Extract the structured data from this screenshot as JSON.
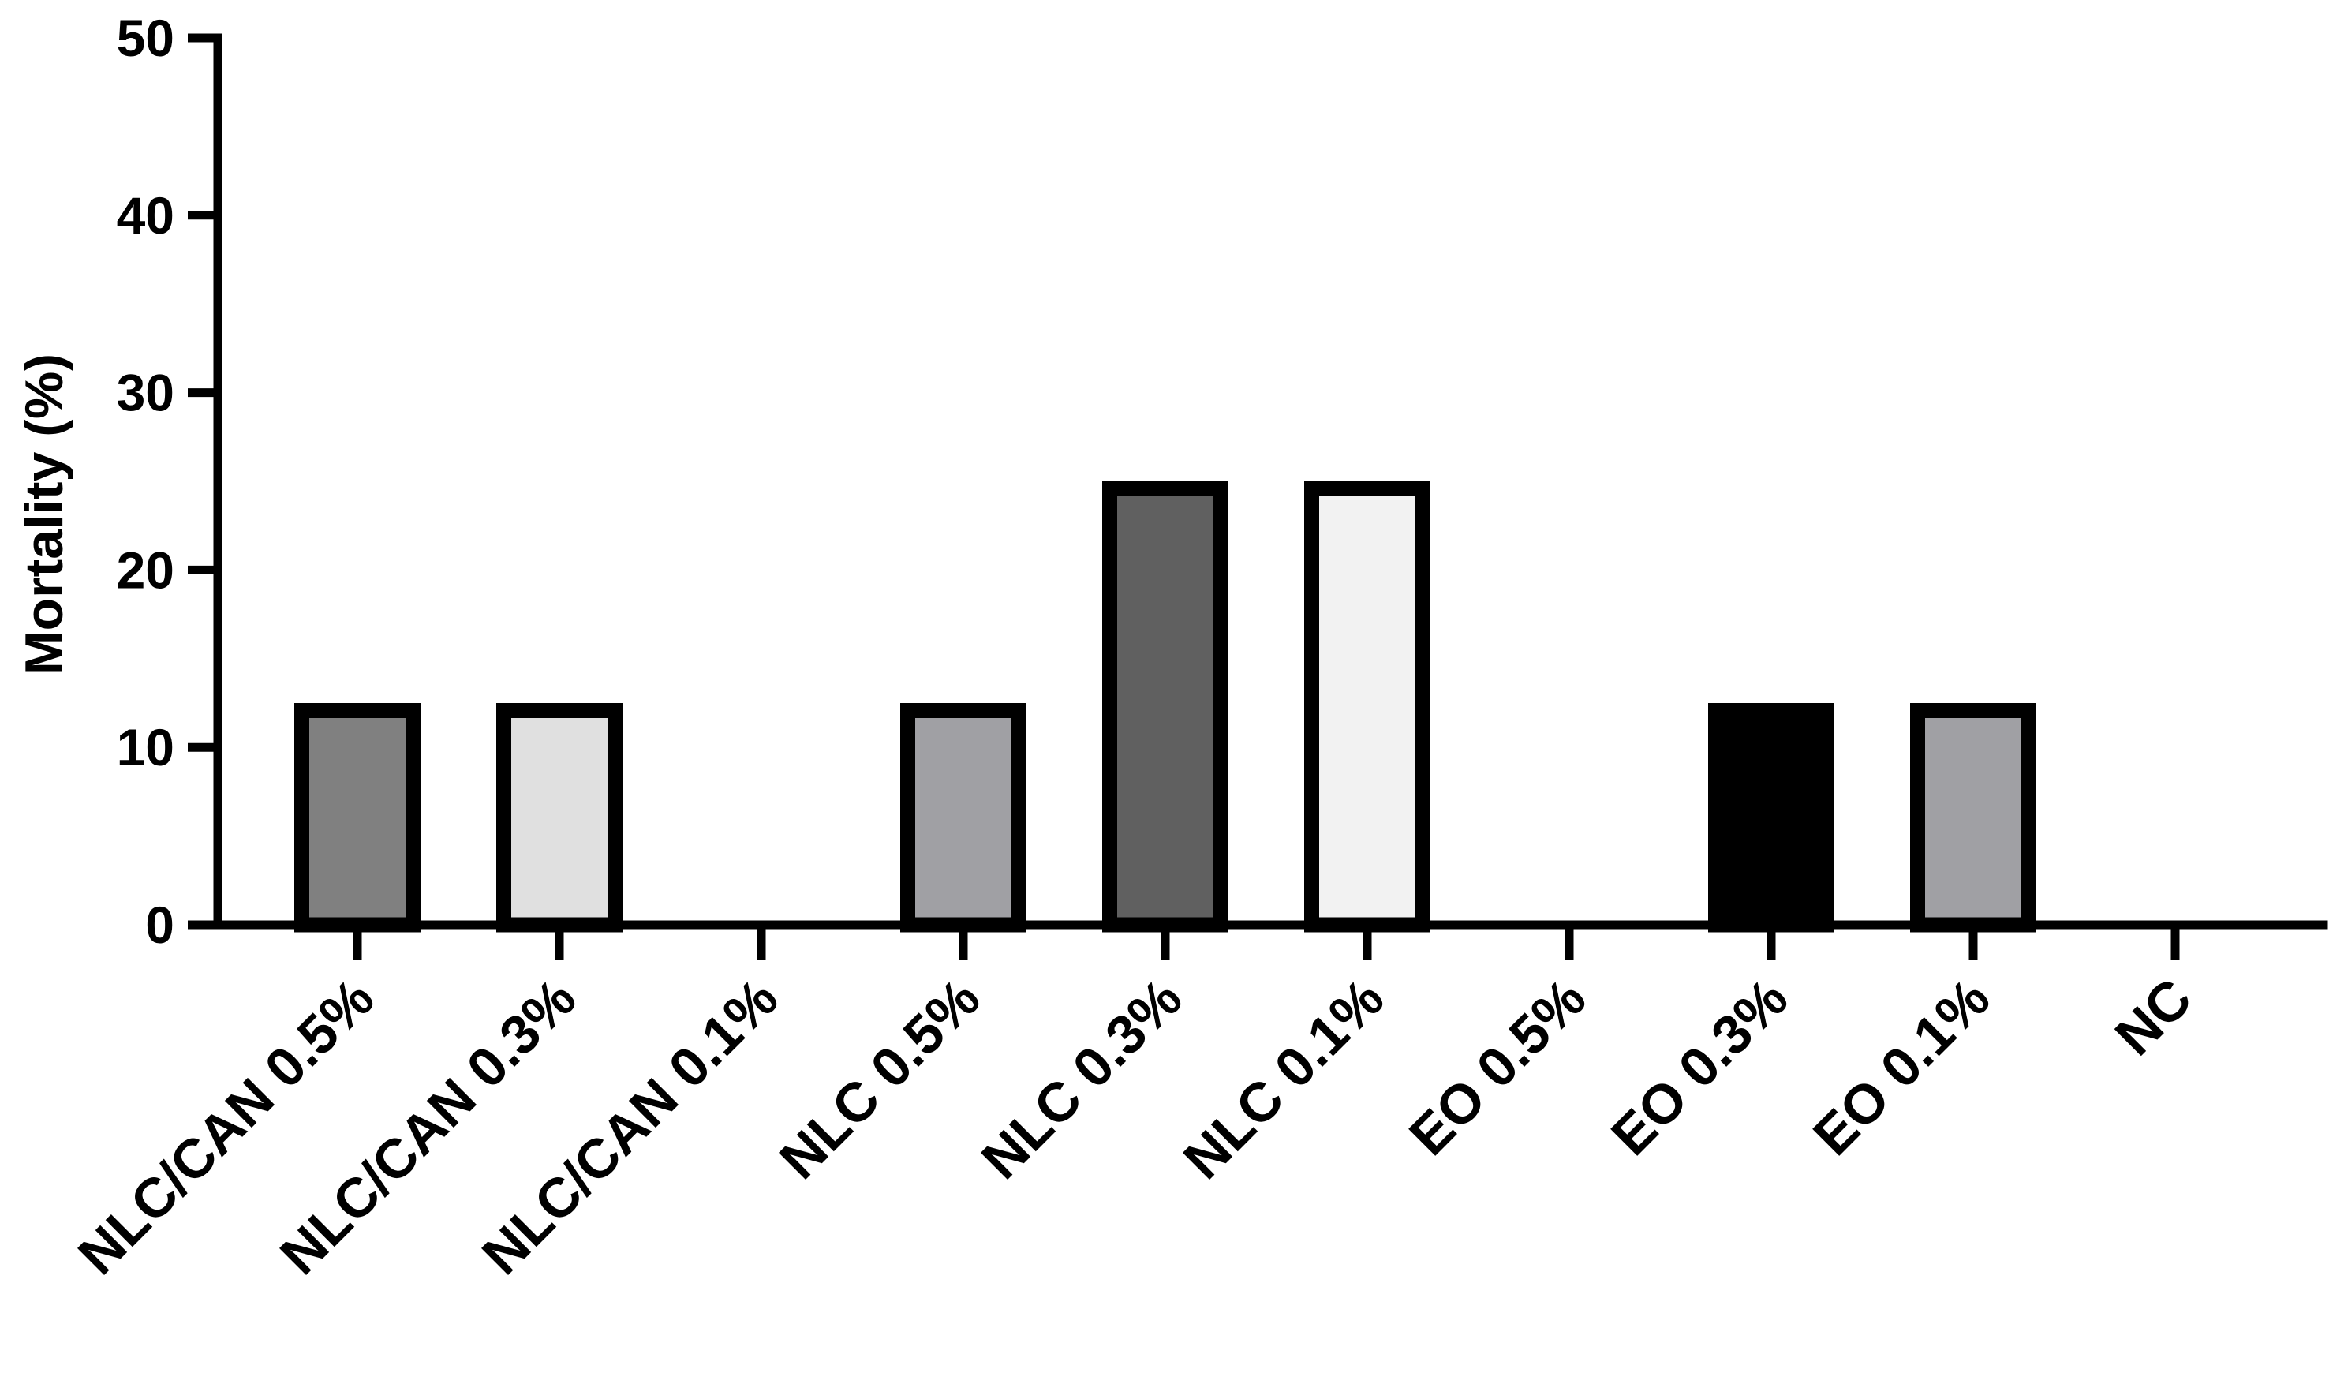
{
  "chart_data": {
    "type": "bar",
    "title": "",
    "xlabel": "",
    "ylabel": "Mortality (%)",
    "ylim": [
      0,
      50
    ],
    "yticks": [
      0,
      10,
      20,
      30,
      40,
      50
    ],
    "grid": false,
    "categories": [
      "NLC/CAN 0.5%",
      "NLC/CAN 0.3%",
      "NLC/CAN 0.1%",
      "NLC 0.5%",
      "NLC 0.3%",
      "NLC 0.1%",
      "EO 0.5%",
      "EO 0.3%",
      "EO 0.1%",
      "NC"
    ],
    "values": [
      12.5,
      12.5,
      0,
      12.5,
      25,
      25,
      0,
      12.5,
      12.5,
      0
    ],
    "bar_colors": [
      "#808080",
      "#e0e0e0",
      "#d9d9d9",
      "#a0a0a4",
      "#606060",
      "#f2f2f2",
      "#ffffff",
      "#000000",
      "#a0a0a4",
      "#ffffff"
    ],
    "edge_color": "#000000"
  }
}
